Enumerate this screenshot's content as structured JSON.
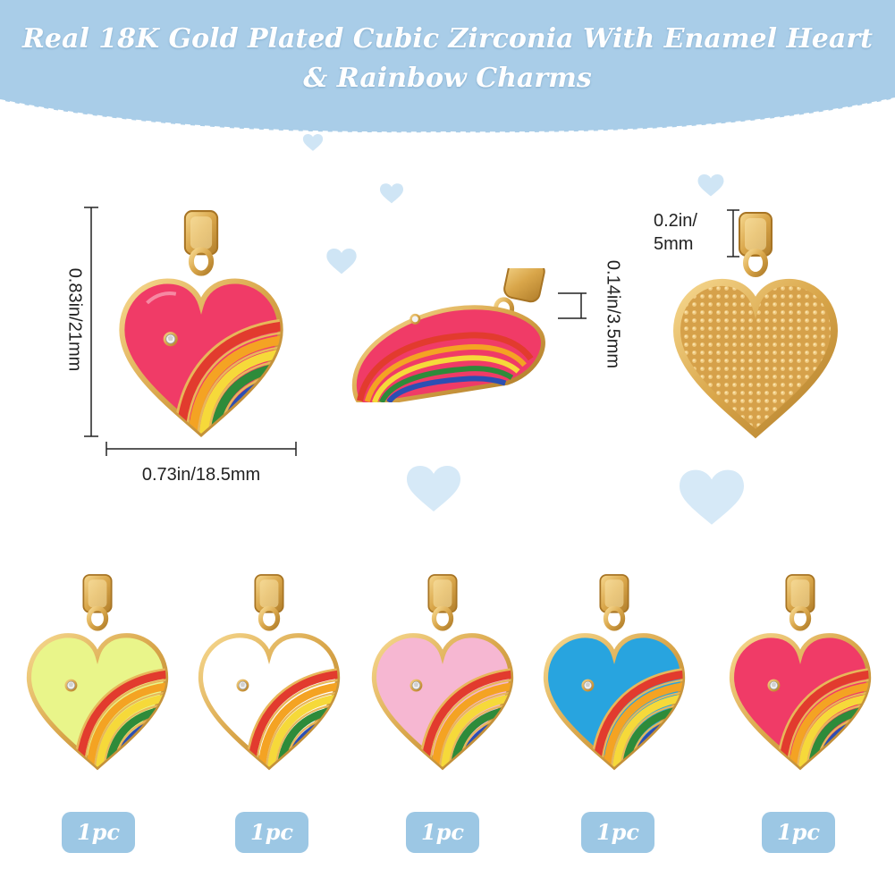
{
  "title": {
    "line1": "Real 18K Gold Plated Cubic Zirconia With Enamel Heart",
    "line2": "& Rainbow Charms"
  },
  "dimensions": {
    "height": "0.83in/21mm",
    "width": "0.73in/18.5mm",
    "thickness": "0.14in/3.5mm",
    "bail_line1": "0.2in/",
    "bail_line2": "5mm"
  },
  "colors": {
    "banner": "#a9cde8",
    "gold": "#d9a64a",
    "badge": "#9cc7e4",
    "deco_heart": "#cfe5f5"
  },
  "variants": [
    {
      "color": "#e9f58a",
      "quantity": "1pc"
    },
    {
      "color": "#ffffff",
      "quantity": "1pc"
    },
    {
      "color": "#f6b7d2",
      "quantity": "1pc"
    },
    {
      "color": "#28a4df",
      "quantity": "1pc"
    },
    {
      "color": "#f03b67",
      "quantity": "1pc"
    }
  ],
  "featured_color": "#f03b67"
}
